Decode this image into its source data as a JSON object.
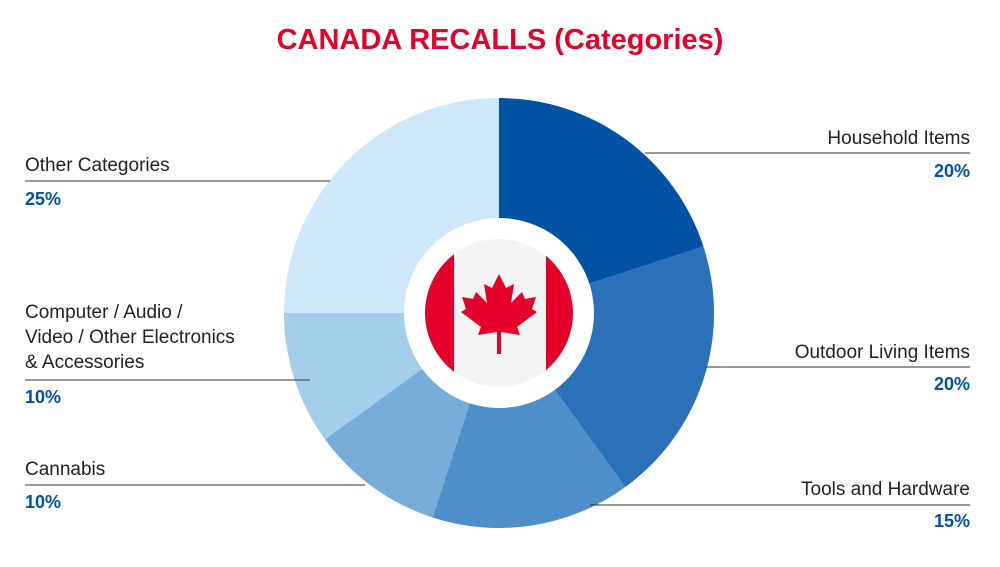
{
  "chart_data": {
    "type": "pie",
    "title": "CANADA RECALLS (Categories)",
    "categories": [
      "Household Items",
      "Outdoor Living Items",
      "Tools and Hardware",
      "Cannabis",
      "Computer / Audio /\nVideo / Other Electronics\n& Accessories",
      "Other Categories"
    ],
    "values": [
      20,
      20,
      15,
      10,
      10,
      25
    ],
    "value_labels": [
      "20%",
      "20%",
      "15%",
      "10%",
      "10%",
      "25%"
    ],
    "colors": [
      "#0052a5",
      "#2b71b8",
      "#4e8fc9",
      "#78acd9",
      "#a4cceb",
      "#cde9f9"
    ]
  }
}
